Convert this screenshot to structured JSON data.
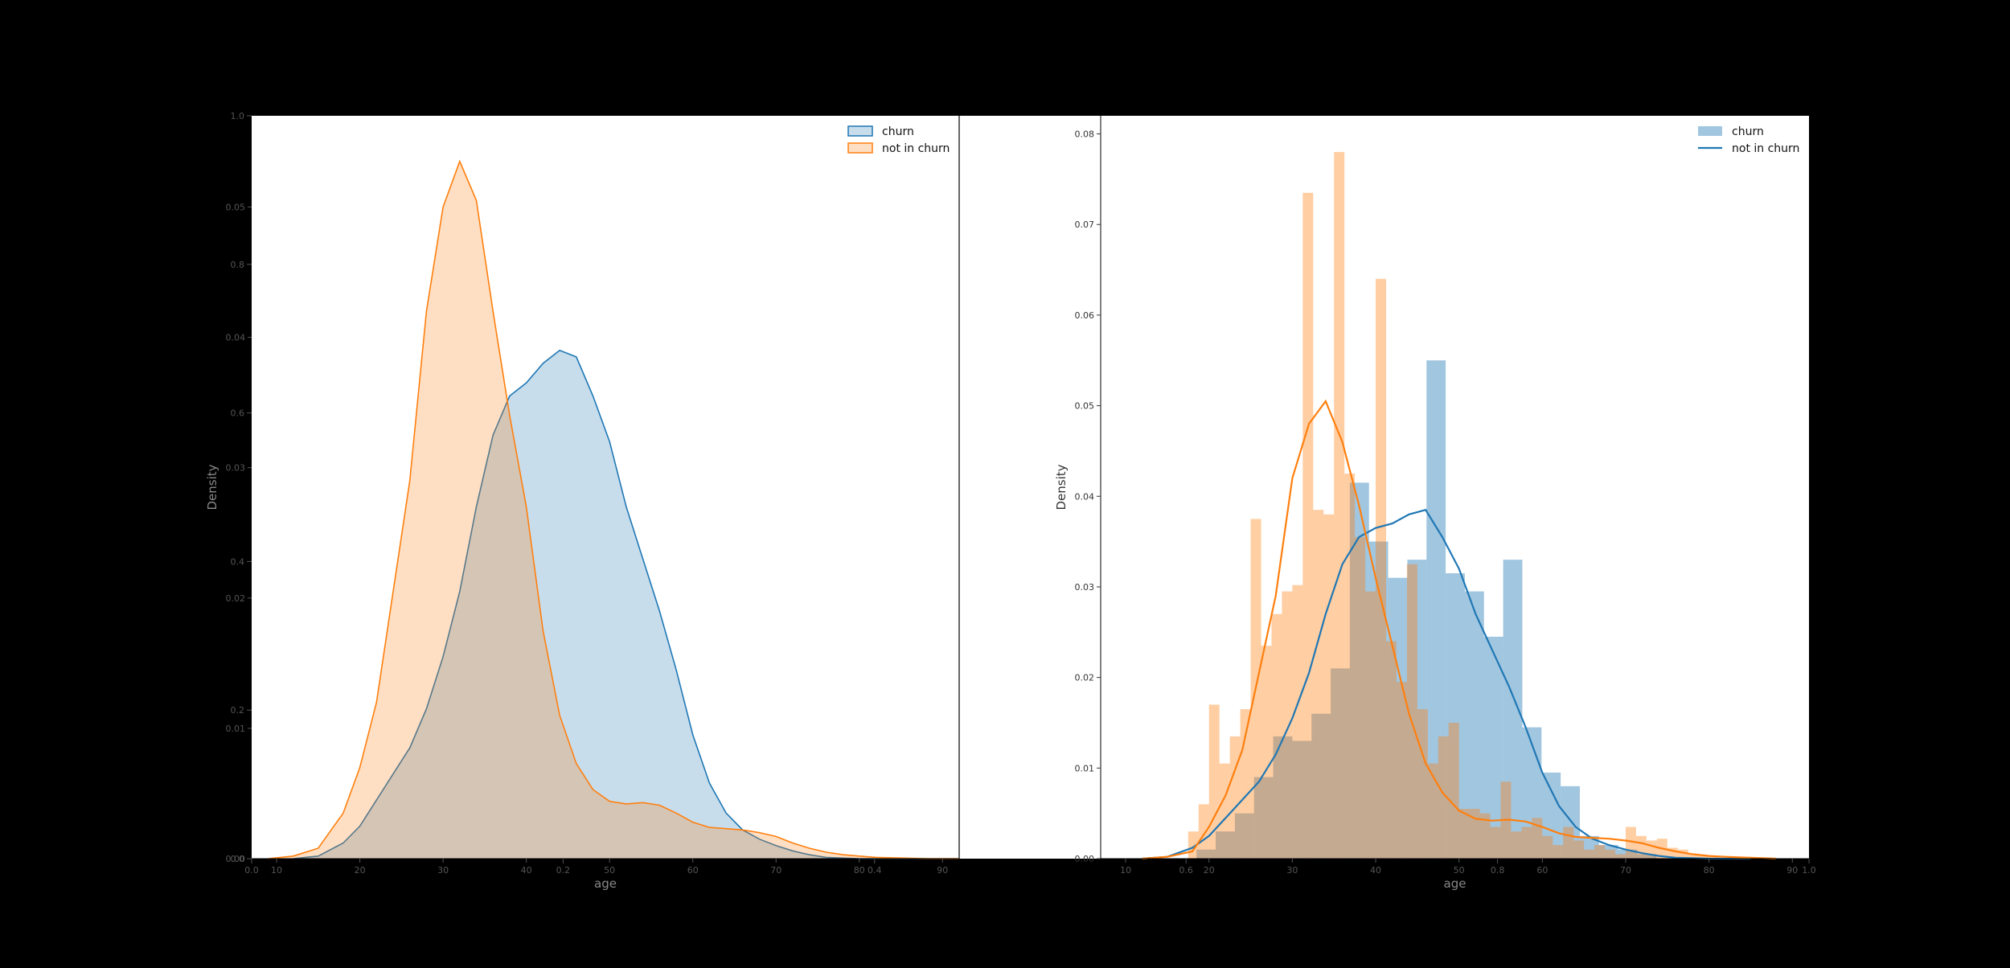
{
  "colors": {
    "background": "#000000",
    "panel": "#ffffff",
    "churn": "#1f77b4",
    "not_in_churn": "#ff7f0e",
    "tick_text": "#555555",
    "axis_label": "#888888"
  },
  "ghost_axis": {
    "yticks": [
      {
        "value": 0.0,
        "label": "0.0"
      },
      {
        "value": 0.2,
        "label": "0.2"
      },
      {
        "value": 0.4,
        "label": "0.4"
      },
      {
        "value": 0.6,
        "label": "0.6"
      },
      {
        "value": 0.8,
        "label": "0.8"
      },
      {
        "value": 1.0,
        "label": "1.0"
      }
    ],
    "xticks": [
      {
        "value": 0.0,
        "label": "0.0"
      },
      {
        "value": 0.2,
        "label": "0.2"
      },
      {
        "value": 0.4,
        "label": "0.4"
      },
      {
        "value": 0.6,
        "label": "0.6"
      },
      {
        "value": 0.8,
        "label": "0.8"
      },
      {
        "value": 1.0,
        "label": "1.0"
      }
    ]
  },
  "chart_data": [
    {
      "type": "area",
      "xlabel": "age",
      "ylabel": "Density",
      "xlim": [
        7,
        92
      ],
      "ylim": [
        0,
        0.057
      ],
      "xticks": [
        10,
        20,
        30,
        40,
        50,
        60,
        70,
        80,
        90
      ],
      "yticks": [
        0.0,
        0.01,
        0.02,
        0.03,
        0.04,
        0.05
      ],
      "ytick_labels": [
        "0.00",
        "0.01",
        "0.02",
        "0.03",
        "0.04",
        "0.05"
      ],
      "legend_position": "top-right",
      "series": [
        {
          "name": "churn",
          "color": "#1f77b4",
          "x": [
            12,
            15,
            18,
            20,
            22,
            24,
            26,
            28,
            30,
            32,
            34,
            36,
            38,
            40,
            42,
            44,
            46,
            48,
            50,
            52,
            54,
            56,
            58,
            60,
            62,
            64,
            66,
            68,
            70,
            72,
            74,
            76,
            78,
            80,
            82,
            85,
            88
          ],
          "y": [
            0.0,
            0.0002,
            0.0012,
            0.0025,
            0.0045,
            0.0065,
            0.0085,
            0.0115,
            0.0155,
            0.0205,
            0.027,
            0.0325,
            0.0355,
            0.0365,
            0.038,
            0.039,
            0.0385,
            0.0355,
            0.032,
            0.027,
            0.023,
            0.019,
            0.0145,
            0.0095,
            0.0058,
            0.0035,
            0.0022,
            0.0015,
            0.001,
            0.0006,
            0.0003,
            0.0001,
            5e-05,
            0.0,
            0.0,
            0.0,
            0.0
          ]
        },
        {
          "name": "not in churn",
          "color": "#ff7f0e",
          "x": [
            9,
            12,
            15,
            18,
            20,
            22,
            24,
            26,
            28,
            30,
            32,
            34,
            36,
            38,
            40,
            42,
            44,
            46,
            48,
            50,
            52,
            54,
            56,
            58,
            60,
            62,
            64,
            66,
            68,
            70,
            72,
            74,
            76,
            78,
            80,
            82,
            85,
            88,
            92
          ],
          "y": [
            0.0,
            0.0002,
            0.0008,
            0.0035,
            0.007,
            0.012,
            0.0205,
            0.029,
            0.042,
            0.05,
            0.0535,
            0.0505,
            0.042,
            0.034,
            0.027,
            0.0175,
            0.011,
            0.0073,
            0.0053,
            0.0044,
            0.0042,
            0.0043,
            0.0041,
            0.0035,
            0.0028,
            0.0024,
            0.0023,
            0.0022,
            0.002,
            0.0017,
            0.0012,
            0.0008,
            0.0005,
            0.0003,
            0.0002,
            0.0001,
            5e-05,
            0.0,
            0.0
          ]
        }
      ]
    },
    {
      "type": "bar",
      "xlabel": "age",
      "ylabel": "Density",
      "xlim": [
        7,
        92
      ],
      "ylim": [
        0,
        0.082
      ],
      "xticks": [
        10,
        20,
        30,
        40,
        50,
        60,
        70,
        80,
        90
      ],
      "yticks": [
        0.0,
        0.01,
        0.02,
        0.03,
        0.04,
        0.05,
        0.06,
        0.07,
        0.08
      ],
      "ytick_labels": [
        "0.00",
        "0.01",
        "0.02",
        "0.03",
        "0.04",
        "0.05",
        "0.06",
        "0.07",
        "0.08"
      ],
      "legend_position": "top-right",
      "hist_series": [
        {
          "name": "churn",
          "color": "#1f77b4",
          "bin_width": 2.3,
          "bin_starts": [
            18.5,
            20.8,
            23.1,
            25.4,
            27.7,
            30.0,
            32.3,
            34.6,
            36.9,
            39.2,
            41.5,
            43.8,
            46.1,
            48.4,
            50.7,
            53.0,
            55.3,
            57.6,
            59.9,
            62.2,
            64.5,
            66.8,
            69.1,
            71.4
          ],
          "values": [
            0.001,
            0.003,
            0.005,
            0.009,
            0.0135,
            0.013,
            0.016,
            0.021,
            0.0415,
            0.035,
            0.031,
            0.033,
            0.055,
            0.0315,
            0.0295,
            0.0245,
            0.033,
            0.0145,
            0.0095,
            0.008,
            0.0025,
            0.0015,
            0.001,
            0.0005
          ]
        },
        {
          "name": "not in churn",
          "color": "#ff7f0e",
          "bin_width": 1.25,
          "bin_starts": [
            17.5,
            18.75,
            20.0,
            21.25,
            22.5,
            23.75,
            25.0,
            26.25,
            27.5,
            28.75,
            30.0,
            31.25,
            32.5,
            33.75,
            35.0,
            36.25,
            37.5,
            38.75,
            40.0,
            41.25,
            42.5,
            43.75,
            45.0,
            46.25,
            47.5,
            48.75,
            50.0,
            51.25,
            52.5,
            53.75,
            55.0,
            56.25,
            57.5,
            58.75,
            60.0,
            61.25,
            62.5,
            63.75,
            65.0,
            66.25,
            67.5,
            68.75,
            70.0,
            71.25,
            72.5,
            73.75,
            75.0,
            76.25,
            77.5,
            78.75,
            80.0
          ],
          "values": [
            0.003,
            0.006,
            0.017,
            0.0105,
            0.0135,
            0.0165,
            0.0375,
            0.0235,
            0.027,
            0.0295,
            0.0302,
            0.0735,
            0.0385,
            0.038,
            0.078,
            0.0425,
            0.0355,
            0.0295,
            0.064,
            0.024,
            0.0195,
            0.0325,
            0.0165,
            0.0105,
            0.0135,
            0.015,
            0.0055,
            0.0055,
            0.005,
            0.0035,
            0.0085,
            0.003,
            0.0035,
            0.0045,
            0.0025,
            0.0015,
            0.0035,
            0.002,
            0.001,
            0.0015,
            0.001,
            0.0005,
            0.0035,
            0.0025,
            0.002,
            0.0022,
            0.0012,
            0.001,
            0.0005,
            0.0003,
            0.0002
          ]
        }
      ],
      "kde_series": [
        {
          "name": "churn",
          "color": "#1f77b4",
          "x": [
            12,
            15,
            18,
            20,
            22,
            24,
            26,
            28,
            30,
            32,
            34,
            36,
            38,
            40,
            42,
            44,
            46,
            48,
            50,
            52,
            54,
            56,
            58,
            60,
            62,
            64,
            66,
            68,
            70,
            72,
            74,
            76,
            78,
            80,
            82,
            85
          ],
          "y": [
            0.0,
            0.0002,
            0.0012,
            0.0025,
            0.0045,
            0.0065,
            0.0085,
            0.0115,
            0.0155,
            0.0205,
            0.027,
            0.0325,
            0.0355,
            0.0365,
            0.037,
            0.038,
            0.0385,
            0.0355,
            0.032,
            0.027,
            0.023,
            0.019,
            0.0145,
            0.0095,
            0.0058,
            0.0035,
            0.0022,
            0.0015,
            0.001,
            0.0006,
            0.0003,
            0.0001,
            5e-05,
            0.0,
            0.0,
            0.0
          ]
        },
        {
          "name": "not in churn",
          "color": "#ff7f0e",
          "x": [
            12,
            15,
            18,
            20,
            22,
            24,
            26,
            28,
            30,
            32,
            34,
            36,
            38,
            40,
            42,
            44,
            46,
            48,
            50,
            52,
            54,
            56,
            58,
            60,
            62,
            64,
            66,
            68,
            70,
            72,
            74,
            76,
            78,
            80,
            82,
            85,
            88
          ],
          "y": [
            0.0,
            0.0002,
            0.0008,
            0.0035,
            0.007,
            0.012,
            0.0205,
            0.029,
            0.042,
            0.048,
            0.0505,
            0.046,
            0.039,
            0.031,
            0.0235,
            0.016,
            0.0105,
            0.0073,
            0.0053,
            0.0044,
            0.0042,
            0.0043,
            0.0041,
            0.0035,
            0.0028,
            0.0024,
            0.0023,
            0.0022,
            0.002,
            0.0017,
            0.0012,
            0.0008,
            0.0005,
            0.0003,
            0.0002,
            0.0001,
            0.0
          ]
        }
      ]
    }
  ]
}
